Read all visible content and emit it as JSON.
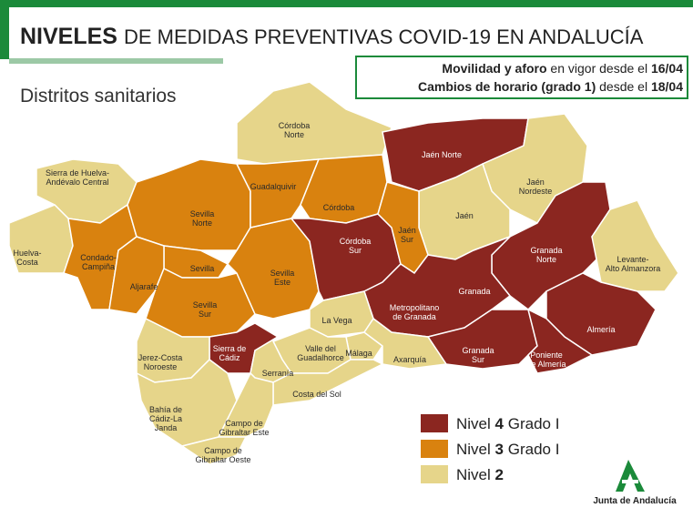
{
  "header": {
    "title_bold": "NIVELES",
    "title_rest": "DE MEDIDAS PREVENTIVAS COVID-19 EN ANDALUCÍA"
  },
  "notice": [
    {
      "bold": "Movilidad y aforo",
      "normal": "en vigor desde el",
      "date": "16/04"
    },
    {
      "bold": "Cambios de horario (grado 1)",
      "normal": "desde el",
      "date": "18/04"
    }
  ],
  "subtitle": "Distritos sanitarios",
  "legend": [
    {
      "start": "Nivel",
      "number": 4,
      "end": "Grado I",
      "color": "#8b2620"
    },
    {
      "start": "Nivel",
      "number": 3,
      "end": "Grado I",
      "color": "#d9820f"
    },
    {
      "start": "Nivel",
      "number": 2,
      "color": "#e6d58a"
    }
  ],
  "districts": [
    {
      "lines": [
        "Córdoba",
        "Norte"
      ],
      "level": 2
    },
    {
      "lines": [
        "Sierra de Huelva-",
        "Andévalo Central"
      ],
      "level": 2
    },
    {
      "lines": [
        "Huelva-",
        "Costa"
      ],
      "level": 2
    },
    {
      "lines": [
        "Condado-",
        "Campiña"
      ],
      "level": 3
    },
    {
      "lines": [
        "Sevilla",
        "Norte"
      ],
      "level": 3
    },
    {
      "lines": [
        "Sevilla"
      ],
      "level": 3
    },
    {
      "lines": [
        "Aljarafe"
      ],
      "level": 3
    },
    {
      "lines": [
        "Sevilla",
        "Sur"
      ],
      "level": 3
    },
    {
      "lines": [
        "Sevilla",
        "Este"
      ],
      "level": 3
    },
    {
      "lines": [
        "Guadalquivir"
      ],
      "level": 3
    },
    {
      "lines": [
        "Córdoba"
      ],
      "level": 3
    },
    {
      "lines": [
        "Córdoba",
        "Sur"
      ],
      "level": 4
    },
    {
      "lines": [
        "Jaén Norte"
      ],
      "level": 4
    },
    {
      "lines": [
        "Jaén",
        "Nordeste"
      ],
      "level": 2
    },
    {
      "lines": [
        "Jaén"
      ],
      "level": 2
    },
    {
      "lines": [
        "Jaén",
        "Sur"
      ],
      "level": 3
    },
    {
      "lines": [
        "Granada",
        "Norte"
      ],
      "level": 4
    },
    {
      "lines": [
        "Levante-",
        "Alto Almanzora"
      ],
      "level": 2
    },
    {
      "lines": [
        "Granada"
      ],
      "level": 4
    },
    {
      "lines": [
        "Metropolitano",
        "de Granada"
      ],
      "level": 4
    },
    {
      "lines": [
        "Almería"
      ],
      "level": 4
    },
    {
      "lines": [
        "Granada",
        "Sur"
      ],
      "level": 4
    },
    {
      "lines": [
        "Poniente",
        "de Almería"
      ],
      "level": 4
    },
    {
      "lines": [
        "La Vega"
      ],
      "level": 2
    },
    {
      "lines": [
        "Málaga"
      ],
      "level": 2
    },
    {
      "lines": [
        "Axarquía"
      ],
      "level": 2
    },
    {
      "lines": [
        "Valle del",
        "Guadalhorce"
      ],
      "level": 2
    },
    {
      "lines": [
        "Sierra de",
        "Cádiz"
      ],
      "level": 4
    },
    {
      "lines": [
        "Serranía"
      ],
      "level": 2
    },
    {
      "lines": [
        "Costa del Sol"
      ],
      "level": 2
    },
    {
      "lines": [
        "Jerez-Costa",
        "Noroeste"
      ],
      "level": 2
    },
    {
      "lines": [
        "Bahía de",
        "Cádiz-La",
        "Janda"
      ],
      "level": 2
    },
    {
      "lines": [
        "Campo de",
        "Gibraltar Este"
      ],
      "level": 2
    },
    {
      "lines": [
        "Campo de",
        "Gibraltar Oeste"
      ],
      "level": 2
    }
  ],
  "logo": "Junta de Andalucía"
}
